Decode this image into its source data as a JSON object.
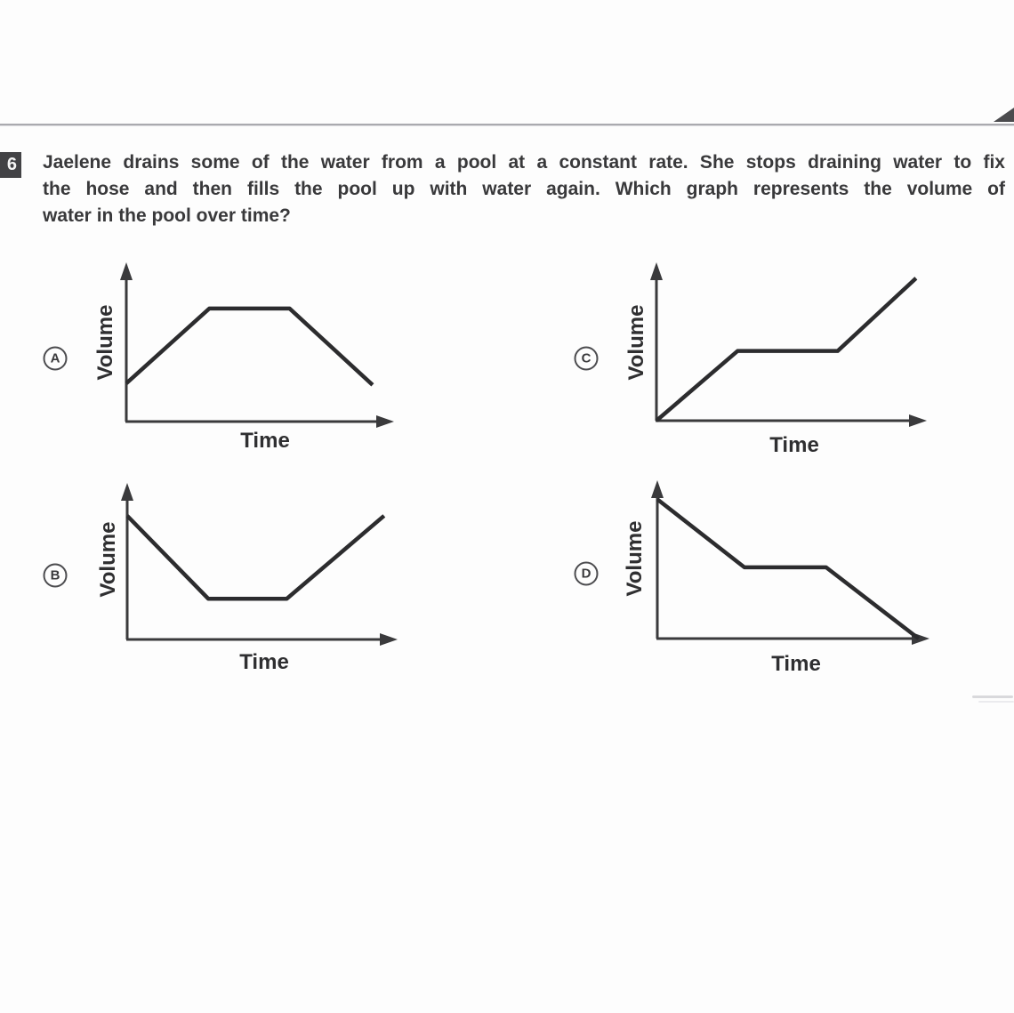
{
  "page": {
    "question_number": "6",
    "question_lines": [
      "Jaelene drains some of the water from a pool at a constant rate. She stops draining water to fix",
      "the hose and then fills the pool up with water again. Which graph represents the volume of",
      "water in the pool over time?"
    ]
  },
  "colors": {
    "ink": "#2c2c2e",
    "axis": "#3a3a3c",
    "rule": "#aaaaaf",
    "badge_bg": "#424245"
  },
  "chart_data": {
    "type": "line",
    "note": "Four qualitative answer-choice sketches; axes unlabeled except titles, no tick marks.",
    "x_label": "Time",
    "y_label": "Volume",
    "graphs": [
      {
        "option": "A",
        "xlabel": "Time",
        "ylabel": "Volume",
        "points": [
          [
            0.0,
            0.24
          ],
          [
            0.31,
            0.71
          ],
          [
            0.61,
            0.71
          ],
          [
            0.92,
            0.23
          ]
        ]
      },
      {
        "option": "B",
        "xlabel": "Time",
        "ylabel": "Volume",
        "points": [
          [
            0.0,
            0.79
          ],
          [
            0.3,
            0.26
          ],
          [
            0.59,
            0.26
          ],
          [
            0.95,
            0.79
          ]
        ]
      },
      {
        "option": "C",
        "xlabel": "Time",
        "ylabel": "Volume",
        "points": [
          [
            0.0,
            0.0
          ],
          [
            0.3,
            0.44
          ],
          [
            0.67,
            0.44
          ],
          [
            0.96,
            0.9
          ]
        ]
      },
      {
        "option": "D",
        "xlabel": "Time",
        "ylabel": "Volume",
        "points": [
          [
            0.0,
            0.88
          ],
          [
            0.32,
            0.45
          ],
          [
            0.62,
            0.45
          ],
          [
            0.96,
            0.0
          ]
        ]
      }
    ]
  }
}
